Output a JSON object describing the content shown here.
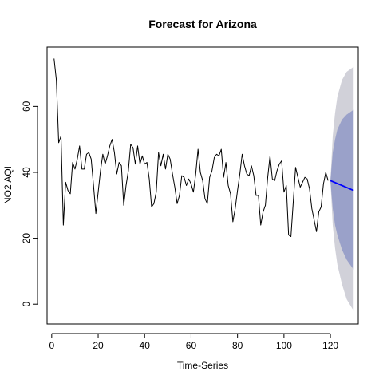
{
  "chart_data": {
    "type": "line",
    "title": "Forecast for Arizona",
    "xlabel": "Time-Series",
    "ylabel": "NO2 AQI",
    "xlim": [
      -2,
      132
    ],
    "ylim": [
      -6,
      78
    ],
    "x_ticks": [
      0,
      20,
      40,
      60,
      80,
      100,
      120
    ],
    "y_ticks": [
      0,
      20,
      40,
      60
    ],
    "grid": false,
    "series": [
      {
        "kind": "observed",
        "color": "#000000",
        "x_start": 1,
        "values": [
          74.5,
          68,
          49,
          51,
          24,
          37,
          34.5,
          33.5,
          43,
          41,
          44,
          48,
          41,
          41,
          45.5,
          46,
          44,
          36,
          27.5,
          34,
          40.5,
          45.5,
          42.5,
          45,
          48,
          50,
          46,
          39.5,
          43,
          42,
          30,
          36,
          40.5,
          48.5,
          47.5,
          42.5,
          48,
          42.5,
          45,
          42.5,
          43,
          38,
          29.5,
          30.5,
          34,
          46,
          42,
          45.5,
          41,
          45.5,
          44,
          39.5,
          35.5,
          30.5,
          33,
          39,
          38.5,
          36,
          38,
          36.5,
          34,
          39.5,
          47,
          40,
          37.5,
          32,
          30.5,
          38.5,
          40.5,
          44.5,
          45.5,
          45,
          47,
          38.5,
          43,
          36,
          33.5,
          25,
          29,
          34.5,
          39.5,
          45.5,
          42,
          39.5,
          39,
          42,
          39,
          33,
          33,
          24,
          28,
          30,
          38.5,
          45,
          38,
          37.5,
          40.5,
          42.5,
          43.5,
          34,
          36,
          21,
          20.5,
          31,
          41.5,
          38.5,
          35.5,
          37,
          38.5,
          38,
          35,
          29,
          25.5,
          22,
          28,
          29.5,
          36.5,
          40,
          37.5
        ]
      },
      {
        "kind": "forecast_mean",
        "color": "#0000ff",
        "x": [
          120,
          130
        ],
        "values": [
          37.5,
          34.5
        ]
      }
    ],
    "intervals": [
      {
        "level": "95%",
        "color": "#d1d1d9",
        "x": [
          120,
          121,
          122,
          123,
          125,
          127,
          130
        ],
        "lower": [
          37.5,
          24,
          17,
          12,
          6,
          1.5,
          -2
        ],
        "upper": [
          37.5,
          51,
          58,
          63,
          68,
          70.5,
          72
        ]
      },
      {
        "level": "80%",
        "color": "#9aa1c9",
        "x": [
          120,
          121,
          122,
          123,
          125,
          127,
          130
        ],
        "lower": [
          37.5,
          29,
          24,
          21,
          16.5,
          13.5,
          10.5
        ],
        "upper": [
          37.5,
          46,
          50,
          53,
          56,
          57.5,
          59
        ]
      }
    ]
  }
}
